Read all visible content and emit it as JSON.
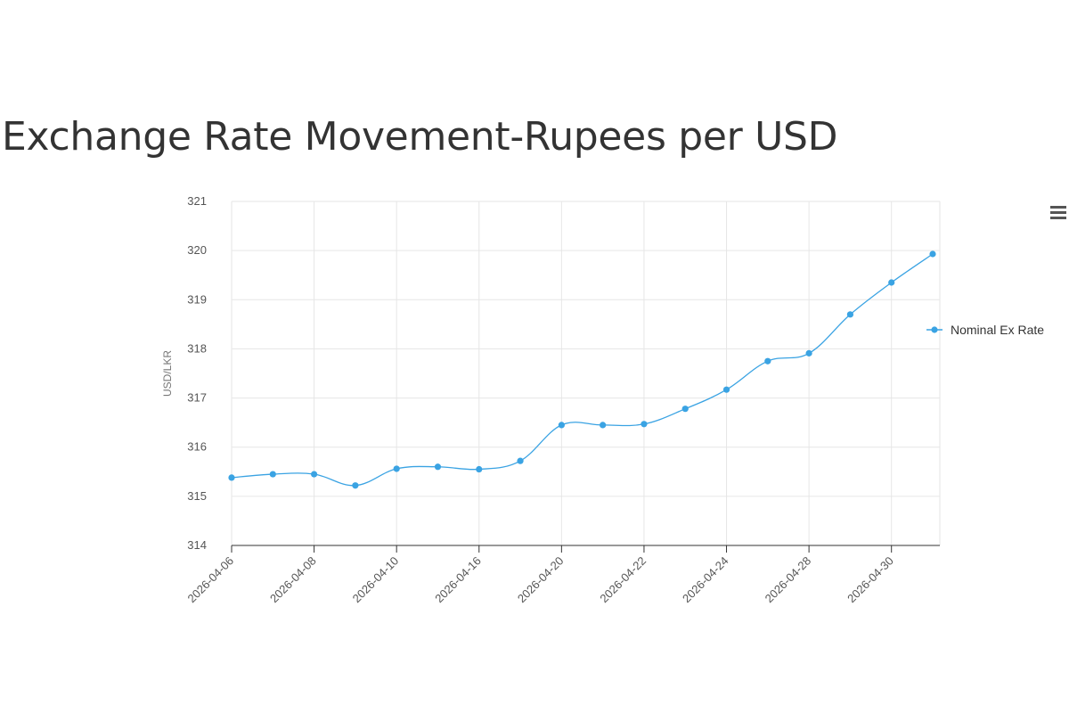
{
  "header": {
    "title": "Exchange Rate Movement-Rupees per USD"
  },
  "menu": {
    "icon": "hamburger-menu-icon"
  },
  "colors": {
    "series": "#3aa3e3",
    "grid": "#e6e6e6",
    "axis": "#333333"
  },
  "chart_data": {
    "type": "line",
    "title": "Exchange Rate Movement-Rupees per USD",
    "ylabel": "USD/LKR",
    "xlabel": "",
    "ylim": [
      314,
      321
    ],
    "y_ticks": [
      314,
      315,
      316,
      317,
      318,
      319,
      320,
      321
    ],
    "x_tick_labels": [
      "2026-04-06",
      "2026-04-08",
      "2026-04-10",
      "2026-04-16",
      "2026-04-20",
      "2026-04-22",
      "2026-04-24",
      "2026-04-28",
      "2026-04-30"
    ],
    "grid": true,
    "legend_position": "right",
    "smooth": true,
    "series": [
      {
        "name": "Nominal Ex Rate",
        "values": [
          315.38,
          315.45,
          315.45,
          315.22,
          315.56,
          315.6,
          315.55,
          315.72,
          316.45,
          316.45,
          316.47,
          316.78,
          317.17,
          317.75,
          317.91,
          318.7,
          319.35,
          319.93
        ]
      }
    ]
  }
}
